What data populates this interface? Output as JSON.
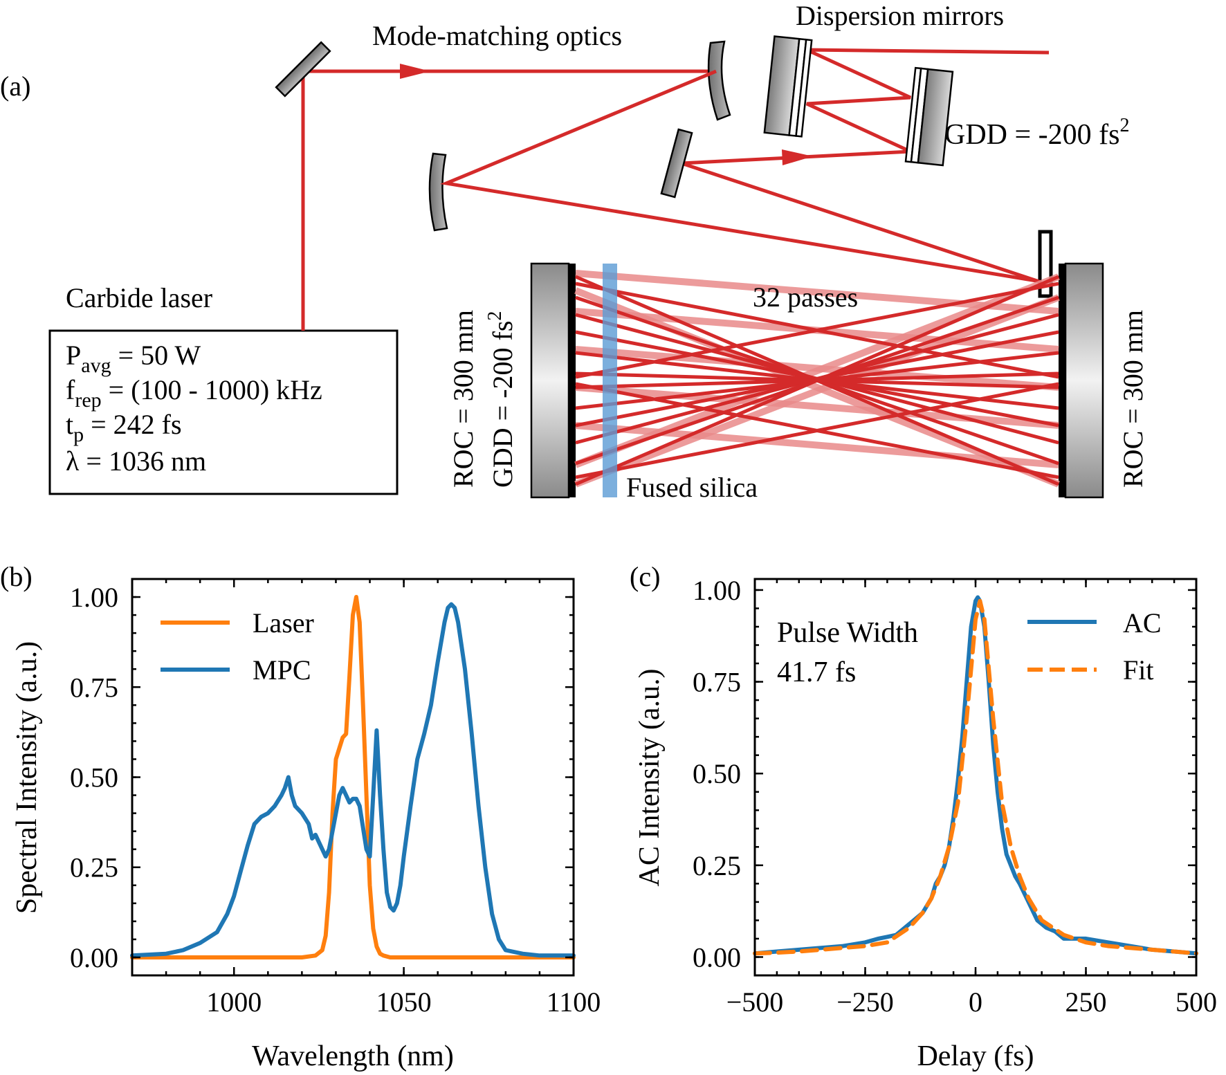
{
  "panel_a": {
    "label": "(a)",
    "mode_matching": "Mode-matching optics",
    "dispersion_mirrors": "Dispersion mirrors",
    "gdd_dispersion": "GDD = -200 fs",
    "gdd_sup": "2",
    "laser_name": "Carbide laser",
    "laser_specs": [
      {
        "base": "P",
        "sub": "avg",
        "rest": " = 50 W"
      },
      {
        "base": "f",
        "sub": "rep",
        "rest": " = (100 - 1000) kHz"
      },
      {
        "base": "t",
        "sub": "p",
        "rest": " = 242 fs"
      },
      {
        "base": "λ",
        "sub": "",
        "rest": " = 1036 nm"
      }
    ],
    "passes": "32 passes",
    "fused_silica": "Fused silica",
    "left_mirror_roc": "ROC = 300 mm",
    "left_mirror_gdd": "GDD = -200 fs",
    "left_mirror_gdd_sup": "2",
    "right_mirror_roc": "ROC = 300 mm",
    "colors": {
      "beam": "#d42a2a",
      "beam_faint": "#e98a8a",
      "silica": "#5b9bd5"
    }
  },
  "chart_data": [
    {
      "type": "line",
      "panel_label": "(b)",
      "xlabel": "Wavelength (nm)",
      "ylabel": "Spectral Intensity (a.u.)",
      "xlim": [
        970,
        1100
      ],
      "ylim": [
        -0.05,
        1.05
      ],
      "xticks": [
        1000,
        1050,
        1100
      ],
      "yticks": [
        0.0,
        0.25,
        0.5,
        0.75,
        1.0
      ],
      "xtick_labels": [
        "1000",
        "1050",
        "1100"
      ],
      "ytick_labels": [
        "0.00",
        "0.25",
        "0.50",
        "0.75",
        "1.00"
      ],
      "legend": [
        "Laser",
        "MPC"
      ],
      "series": [
        {
          "name": "Laser",
          "color": "#ff7f0e",
          "style": "solid",
          "x": [
            970,
            1020,
            1024,
            1026,
            1027,
            1028,
            1029,
            1030,
            1031,
            1032,
            1033,
            1034,
            1035,
            1036,
            1037,
            1038,
            1039,
            1040,
            1041,
            1042,
            1043,
            1044,
            1046,
            1050,
            1100
          ],
          "y": [
            0,
            0,
            0.005,
            0.02,
            0.06,
            0.18,
            0.4,
            0.55,
            0.58,
            0.61,
            0.62,
            0.78,
            0.95,
            1.0,
            0.93,
            0.7,
            0.45,
            0.2,
            0.08,
            0.03,
            0.01,
            0.005,
            0,
            0,
            0
          ]
        },
        {
          "name": "MPC",
          "color": "#1f77b4",
          "style": "solid",
          "x": [
            970,
            980,
            985,
            990,
            995,
            998,
            1000,
            1002,
            1004,
            1006,
            1008,
            1010,
            1012,
            1014,
            1015,
            1016,
            1017,
            1018,
            1020,
            1022,
            1023,
            1024,
            1025,
            1026,
            1027,
            1028,
            1029,
            1030,
            1031,
            1032,
            1033,
            1034,
            1035,
            1036,
            1037,
            1038,
            1039,
            1040,
            1041,
            1042,
            1043,
            1044,
            1045,
            1046,
            1047,
            1048,
            1049,
            1050,
            1052,
            1054,
            1056,
            1058,
            1060,
            1062,
            1063,
            1064,
            1065,
            1066,
            1068,
            1070,
            1072,
            1074,
            1076,
            1078,
            1080,
            1085,
            1090,
            1095,
            1100
          ],
          "y": [
            0.005,
            0.01,
            0.02,
            0.04,
            0.07,
            0.12,
            0.17,
            0.24,
            0.31,
            0.37,
            0.39,
            0.4,
            0.42,
            0.45,
            0.47,
            0.5,
            0.45,
            0.42,
            0.4,
            0.37,
            0.33,
            0.34,
            0.32,
            0.3,
            0.28,
            0.3,
            0.35,
            0.4,
            0.45,
            0.47,
            0.45,
            0.43,
            0.44,
            0.44,
            0.42,
            0.36,
            0.3,
            0.28,
            0.45,
            0.63,
            0.45,
            0.3,
            0.18,
            0.14,
            0.13,
            0.15,
            0.2,
            0.28,
            0.42,
            0.55,
            0.62,
            0.7,
            0.82,
            0.93,
            0.97,
            0.98,
            0.97,
            0.93,
            0.8,
            0.62,
            0.42,
            0.25,
            0.12,
            0.05,
            0.02,
            0.01,
            0.005,
            0.005,
            0.005
          ]
        }
      ]
    },
    {
      "type": "line",
      "panel_label": "(c)",
      "xlabel": "Delay (fs)",
      "ylabel": "AC Intensity (a.u.)",
      "xlim": [
        -500,
        500
      ],
      "ylim": [
        -0.05,
        1.03
      ],
      "xticks": [
        -500,
        -250,
        0,
        250,
        500
      ],
      "yticks": [
        0.0,
        0.25,
        0.5,
        0.75,
        1.0
      ],
      "xtick_labels": [
        "−500",
        "−250",
        "0",
        "250",
        "500"
      ],
      "ytick_labels": [
        "0.00",
        "0.25",
        "0.50",
        "0.75",
        "1.00"
      ],
      "legend": [
        "AC",
        "Fit"
      ],
      "annotation": [
        "Pulse Width",
        "41.7 fs"
      ],
      "series": [
        {
          "name": "AC",
          "color": "#1f77b4",
          "style": "solid",
          "x": [
            -500,
            -450,
            -400,
            -350,
            -300,
            -250,
            -220,
            -200,
            -180,
            -160,
            -140,
            -120,
            -100,
            -90,
            -80,
            -70,
            -60,
            -50,
            -40,
            -30,
            -20,
            -10,
            0,
            5,
            10,
            20,
            30,
            40,
            50,
            60,
            70,
            80,
            90,
            100,
            120,
            140,
            160,
            180,
            200,
            250,
            300,
            350,
            400,
            450,
            500
          ],
          "y": [
            0.01,
            0.015,
            0.02,
            0.025,
            0.03,
            0.04,
            0.05,
            0.055,
            0.06,
            0.08,
            0.1,
            0.12,
            0.16,
            0.2,
            0.22,
            0.25,
            0.3,
            0.38,
            0.48,
            0.6,
            0.75,
            0.9,
            0.97,
            0.98,
            0.97,
            0.9,
            0.75,
            0.58,
            0.45,
            0.35,
            0.28,
            0.25,
            0.22,
            0.2,
            0.15,
            0.1,
            0.08,
            0.07,
            0.05,
            0.05,
            0.04,
            0.03,
            0.02,
            0.015,
            0.01
          ]
        },
        {
          "name": "Fit",
          "color": "#ff7f0e",
          "style": "dashed",
          "x": [
            -500,
            -450,
            -400,
            -350,
            -300,
            -250,
            -200,
            -150,
            -120,
            -100,
            -80,
            -60,
            -40,
            -20,
            0,
            10,
            20,
            40,
            60,
            80,
            100,
            120,
            150,
            200,
            250,
            300,
            350,
            400,
            450,
            500
          ],
          "y": [
            0.01,
            0.012,
            0.015,
            0.02,
            0.025,
            0.03,
            0.04,
            0.08,
            0.12,
            0.16,
            0.22,
            0.3,
            0.42,
            0.65,
            0.92,
            0.97,
            0.92,
            0.65,
            0.42,
            0.3,
            0.22,
            0.16,
            0.1,
            0.06,
            0.04,
            0.03,
            0.025,
            0.02,
            0.015,
            0.01
          ]
        }
      ]
    }
  ]
}
